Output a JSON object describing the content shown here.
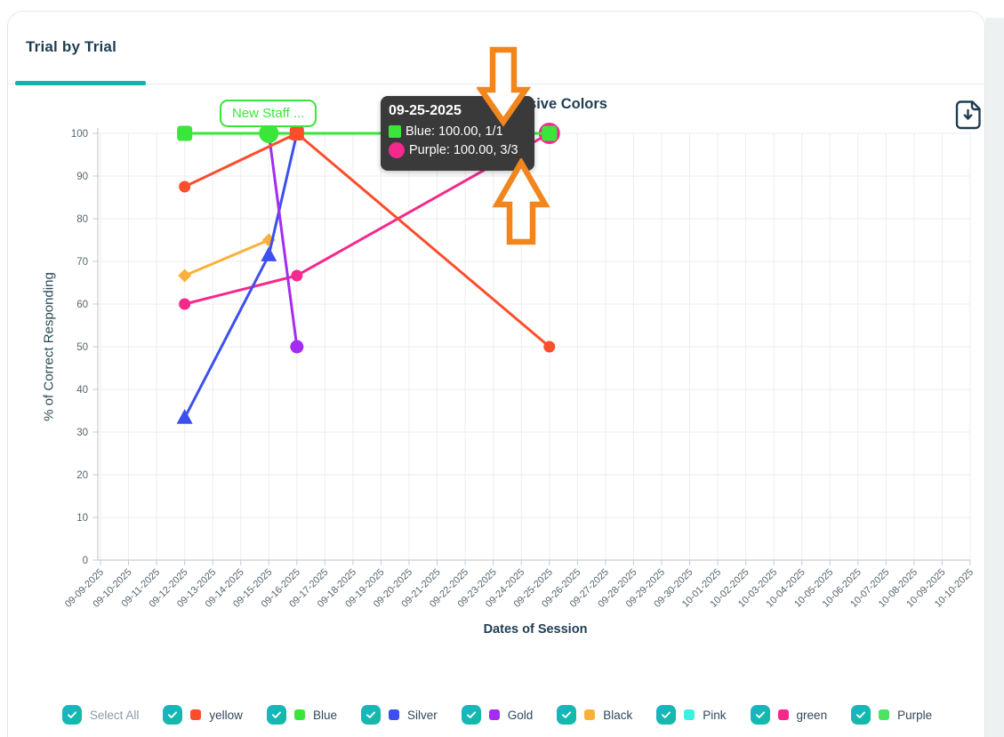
{
  "card": {
    "tab_label": "Trial by Trial"
  },
  "chart": {
    "title": "Expressive Colors",
    "x_axis_label": "Dates of Session",
    "y_axis_label": "% of Correct Responding"
  },
  "annotation": {
    "label": "New Staff ...",
    "date": "09-15-2025",
    "value": 100
  },
  "tooltip": {
    "title": "09-25-2025",
    "rows": [
      {
        "label": "Blue: 100.00, 1/1",
        "color": "#39e639",
        "shape": "square"
      },
      {
        "label": "Purple: 100.00, 3/3",
        "color": "#f5288c",
        "shape": "circle"
      }
    ]
  },
  "icons": {
    "download": "file-download-icon",
    "checkbox_check": "check-icon",
    "callout_arrows": [
      "arrow-down",
      "arrow-up"
    ]
  },
  "colors": {
    "accent_teal": "#12b3ab",
    "checkbox_teal": "#14b8b4",
    "dark_text": "#1e3d52",
    "tick_text": "#54656e",
    "grid": "#ededed",
    "axis": "#c7ccd1",
    "tooltip_bg": "#3a3a3a",
    "annotation_green": "#39e639",
    "callout_arrow_orange": "#f1861f"
  },
  "legend": {
    "select_all_label": "Select All",
    "items": [
      {
        "label": "yellow",
        "color": "#fb4e2b",
        "checked": true
      },
      {
        "label": "Blue",
        "color": "#39e639",
        "checked": true
      },
      {
        "label": "Silver",
        "color": "#3d50ef",
        "checked": true
      },
      {
        "label": "Gold",
        "color": "#a42cf2",
        "checked": true
      },
      {
        "label": "Black",
        "color": "#fbb03b",
        "checked": true
      },
      {
        "label": "Pink",
        "color": "#3ef0e0",
        "checked": true
      },
      {
        "label": "green",
        "color": "#f5288c",
        "checked": true
      },
      {
        "label": "Purple",
        "color": "#4be465",
        "checked": true
      }
    ]
  },
  "chart_data": {
    "type": "line",
    "title": "Expressive Colors",
    "xlabel": "Dates of Session",
    "ylabel": "% of Correct Responding",
    "ylim": [
      0,
      100
    ],
    "y_ticks": [
      0,
      10,
      20,
      30,
      40,
      50,
      60,
      70,
      80,
      90,
      100
    ],
    "grid": true,
    "legend_position": "bottom",
    "x_categories": [
      "09-09-2025",
      "09-10-2025",
      "09-11-2025",
      "09-12-2025",
      "09-13-2025",
      "09-14-2025",
      "09-15-2025",
      "09-16-2025",
      "09-17-2025",
      "09-18-2025",
      "09-19-2025",
      "09-20-2025",
      "09-21-2025",
      "09-22-2025",
      "09-23-2025",
      "09-24-2025",
      "09-25-2025",
      "09-26-2025",
      "09-27-2025",
      "09-28-2025",
      "09-29-2025",
      "09-30-2025",
      "10-01-2025",
      "10-02-2025",
      "10-03-2025",
      "10-04-2025",
      "10-05-2025",
      "10-06-2025",
      "10-07-2025",
      "10-08-2025",
      "10-09-2025",
      "10-10-2025"
    ],
    "series": [
      {
        "name": "Purple",
        "color": "#f5288c",
        "points": [
          {
            "date": "09-12-2025",
            "value": 60,
            "marker": "circle",
            "size": 6.5
          },
          {
            "date": "09-16-2025",
            "value": 66.67,
            "marker": "circle",
            "size": 6.5
          },
          {
            "date": "09-25-2025",
            "value": 100,
            "marker": "circle",
            "size": 12,
            "tooltip_fraction": "3/3"
          }
        ]
      },
      {
        "name": "Black",
        "color": "#fbb03b",
        "points": [
          {
            "date": "09-12-2025",
            "value": 66.67,
            "marker": "diamond",
            "size": 7.5
          },
          {
            "date": "09-15-2025",
            "value": 75,
            "marker": "diamond",
            "size": 7.5
          }
        ]
      },
      {
        "name": "Silver",
        "color": "#3d50ef",
        "points": [
          {
            "date": "09-12-2025",
            "value": 33.33,
            "marker": "triangle",
            "size": 9
          },
          {
            "date": "09-15-2025",
            "value": 71.43,
            "marker": "triangle",
            "size": 9
          },
          {
            "date": "09-16-2025",
            "value": 100,
            "marker": "triangle",
            "size": 9
          }
        ]
      },
      {
        "name": "Gold",
        "color": "#a42cf2",
        "points": [
          {
            "date": "09-12-2025",
            "value": 100,
            "marker": "circle",
            "size": 7.5
          },
          {
            "date": "09-15-2025",
            "value": 100,
            "marker": "circle",
            "size": 7.5
          },
          {
            "date": "09-16-2025",
            "value": 50,
            "marker": "circle",
            "size": 7.5
          }
        ]
      },
      {
        "name": "Blue",
        "color": "#39e639",
        "points": [
          {
            "date": "09-12-2025",
            "value": 100,
            "marker": "square",
            "size": 15
          },
          {
            "date": "09-15-2025",
            "value": 100,
            "marker": "circle",
            "size": 11,
            "annotation": "New Staff ..."
          },
          {
            "date": "09-25-2025",
            "value": 100,
            "marker": "square",
            "size": 15,
            "tooltip_fraction": "1/1"
          }
        ]
      },
      {
        "name": "yellow",
        "color": "#fb4e2b",
        "points": [
          {
            "date": "09-12-2025",
            "value": 87.5,
            "marker": "circle",
            "size": 6.5
          },
          {
            "date": "09-16-2025",
            "value": 100,
            "marker": "square",
            "size": 14
          },
          {
            "date": "09-25-2025",
            "value": 50,
            "marker": "circle",
            "size": 6.5
          }
        ]
      }
    ]
  }
}
